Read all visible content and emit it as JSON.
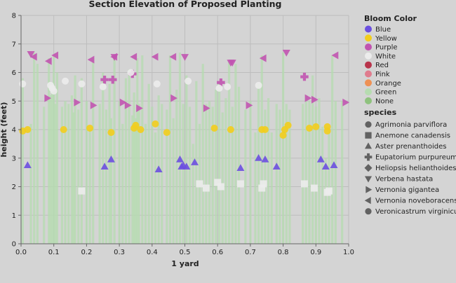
{
  "chart_data": {
    "type": "scatter",
    "title": "Section Elevation of Proposed Planting",
    "xlabel": "1 yard",
    "ylabel": "height (feet)",
    "xlim": [
      0,
      1
    ],
    "ylim": [
      0,
      8
    ],
    "x_ticks": [
      "0.0",
      "0.1",
      "0.2",
      "0.3",
      "0.4",
      "0.5",
      "0.6",
      "0.7",
      "0.8",
      "0.9",
      "1.0"
    ],
    "y_ticks": [
      "0",
      "1",
      "2",
      "3",
      "4",
      "5",
      "6",
      "7",
      "8"
    ],
    "grid": true,
    "legend_placement": "right",
    "color_legend": {
      "title": "Bloom Color",
      "entries": [
        {
          "label": "Blue",
          "color": "#6b4fe0"
        },
        {
          "label": "Yellow",
          "color": "#f2cd1d"
        },
        {
          "label": "Purple",
          "color": "#c154b0"
        },
        {
          "label": "White",
          "color": "#ececec"
        },
        {
          "label": "Red",
          "color": "#b8344b"
        },
        {
          "label": "Pink",
          "color": "#e07c8e"
        },
        {
          "label": "Orange",
          "color": "#ee9155"
        },
        {
          "label": "Green",
          "color": "#b6dcb0"
        },
        {
          "label": "None",
          "color": "#8fc27e"
        }
      ]
    },
    "shape_legend": {
      "title": "species",
      "entries": [
        {
          "label": "Agrimonia parviflora",
          "shape": "circle"
        },
        {
          "label": "Anemone canadensis",
          "shape": "square"
        },
        {
          "label": "Aster prenanthoides",
          "shape": "triangle-up"
        },
        {
          "label": "Eupatorium purpureum",
          "shape": "cross"
        },
        {
          "label": "Heliopsis helianthoides",
          "shape": "diamond"
        },
        {
          "label": "Verbena hastata",
          "shape": "triangle-down"
        },
        {
          "label": "Vernonia gigantea",
          "shape": "triangle-right"
        },
        {
          "label": "Vernonia noveboracensis",
          "shape": "triangle-left"
        },
        {
          "label": "Veronicastrum virginicum",
          "shape": "circle"
        }
      ]
    },
    "stems": {
      "color": "Green",
      "x": [
        0.005,
        0.03,
        0.04,
        0.05,
        0.07,
        0.085,
        0.09,
        0.095,
        0.1,
        0.105,
        0.11,
        0.125,
        0.135,
        0.145,
        0.155,
        0.16,
        0.165,
        0.175,
        0.185,
        0.2,
        0.21,
        0.22,
        0.24,
        0.25,
        0.26,
        0.27,
        0.275,
        0.285,
        0.3,
        0.31,
        0.32,
        0.33,
        0.34,
        0.345,
        0.35,
        0.355,
        0.36,
        0.37,
        0.38,
        0.39,
        0.4,
        0.41,
        0.42,
        0.43,
        0.445,
        0.455,
        0.465,
        0.475,
        0.485,
        0.495,
        0.505,
        0.515,
        0.525,
        0.535,
        0.545,
        0.555,
        0.565,
        0.575,
        0.585,
        0.595,
        0.605,
        0.615,
        0.625,
        0.635,
        0.645,
        0.655,
        0.665,
        0.685,
        0.7,
        0.715,
        0.725,
        0.735,
        0.745,
        0.755,
        0.765,
        0.78,
        0.79,
        0.8,
        0.81,
        0.82,
        0.86,
        0.87,
        0.88,
        0.89,
        0.9,
        0.91,
        0.92,
        0.93,
        0.94,
        0.95,
        0.96,
        0.98
      ],
      "top": [
        5.8,
        4.2,
        6.7,
        6.3,
        4.8,
        6.5,
        5.2,
        5.4,
        6.6,
        4.9,
        6.0,
        4.8,
        5.0,
        4.9,
        5.2,
        4.6,
        5.9,
        4.7,
        5.8,
        5.0,
        4.0,
        6.5,
        4.9,
        6.0,
        4.7,
        5.6,
        4.4,
        6.6,
        5.0,
        4.2,
        5.8,
        6.1,
        4.5,
        5.3,
        4.4,
        6.5,
        4.9,
        6.6,
        4.2,
        5.6,
        4.8,
        3.9,
        5.2,
        4.9,
        4.7,
        6.6,
        4.4,
        5.4,
        6.7,
        4.9,
        5.9,
        4.8,
        3.5,
        5.7,
        4.2,
        6.3,
        4.9,
        5.0,
        4.8,
        5.4,
        5.7,
        4.6,
        5.1,
        6.4,
        4.8,
        6.3,
        5.5,
        4.7,
        5.0,
        3.9,
        5.6,
        6.6,
        4.7,
        5.1,
        3.9,
        4.9,
        4.7,
        6.7,
        4.9,
        4.7,
        4.9,
        5.2,
        5.0,
        5.9,
        4.8,
        5.1,
        4.1,
        3.0,
        4.0,
        6.6,
        5.0,
        5.0
      ],
      "bottom": 0
    },
    "series": [
      {
        "name": "Agrimonia parviflora",
        "marker": "circle",
        "color": "Yellow",
        "x": [
          0.005,
          0.02,
          0.13,
          0.21,
          0.275,
          0.345,
          0.35,
          0.365,
          0.41,
          0.445,
          0.59,
          0.64,
          0.735,
          0.745,
          0.8,
          0.805,
          0.815,
          0.88,
          0.9,
          0.935,
          0.935
        ],
        "y": [
          3.95,
          4.0,
          4.0,
          4.05,
          3.9,
          4.05,
          4.15,
          4.0,
          4.2,
          3.9,
          4.05,
          4.0,
          4.0,
          4.0,
          3.8,
          4.0,
          4.15,
          4.05,
          4.1,
          4.1,
          3.95
        ]
      },
      {
        "name": "Anemone canadensis",
        "marker": "square",
        "color": "White",
        "x": [
          0.185,
          0.545,
          0.565,
          0.6,
          0.61,
          0.67,
          0.735,
          0.74,
          0.865,
          0.895,
          0.935,
          0.94
        ],
        "y": [
          1.85,
          2.1,
          1.95,
          2.15,
          2.0,
          2.1,
          1.95,
          2.1,
          2.1,
          1.95,
          1.8,
          1.85
        ]
      },
      {
        "name": "Aster prenanthoides",
        "marker": "triangle-up",
        "color": "Blue",
        "x": [
          0.02,
          0.255,
          0.275,
          0.42,
          0.485,
          0.49,
          0.495,
          0.505,
          0.53,
          0.67,
          0.725,
          0.745,
          0.78,
          0.915,
          0.93,
          0.955
        ],
        "y": [
          2.75,
          2.7,
          2.95,
          2.6,
          2.95,
          2.7,
          2.75,
          2.7,
          2.85,
          2.65,
          3.0,
          2.95,
          2.7,
          2.95,
          2.7,
          2.75
        ]
      },
      {
        "name": "Eupatorium purpureum",
        "marker": "cross",
        "color": "Purple",
        "x": [
          0.255,
          0.28,
          0.34,
          0.61,
          0.865
        ],
        "y": [
          5.75,
          5.75,
          5.95,
          5.65,
          5.85
        ]
      },
      {
        "name": "Heliopsis helianthoides",
        "marker": "diamond",
        "color": "Yellow",
        "x": [],
        "y": []
      },
      {
        "name": "Verbena hastata",
        "marker": "triangle-down",
        "color": "Purple",
        "x": [
          0.03,
          0.285,
          0.5,
          0.64,
          0.645,
          0.81
        ],
        "y": [
          6.65,
          6.55,
          6.55,
          6.35,
          6.35,
          6.7
        ]
      },
      {
        "name": "Vernonia gigantea",
        "marker": "triangle-right",
        "color": "Purple",
        "x": [
          0.08,
          0.17,
          0.22,
          0.31,
          0.325,
          0.36,
          0.465,
          0.565,
          0.695,
          0.875,
          0.895,
          0.99
        ],
        "y": [
          5.1,
          4.95,
          4.85,
          4.95,
          4.85,
          4.75,
          5.1,
          4.75,
          4.85,
          5.1,
          5.05,
          4.95
        ]
      },
      {
        "name": "Vernonia noveboracensis",
        "marker": "triangle-left",
        "color": "Purple",
        "x": [
          0.04,
          0.085,
          0.105,
          0.215,
          0.285,
          0.345,
          0.41,
          0.465,
          0.74,
          0.96
        ],
        "y": [
          6.55,
          6.4,
          6.6,
          6.45,
          6.55,
          6.55,
          6.55,
          6.55,
          6.5,
          6.6
        ]
      },
      {
        "name": "Veronicastrum virginicum",
        "marker": "circle",
        "color": "White",
        "x": [
          0.005,
          0.09,
          0.095,
          0.1,
          0.135,
          0.185,
          0.25,
          0.335,
          0.415,
          0.51,
          0.605,
          0.63,
          0.725
        ],
        "y": [
          5.6,
          5.55,
          5.45,
          5.35,
          5.7,
          5.6,
          5.5,
          6.0,
          5.6,
          5.7,
          5.45,
          5.5,
          5.55
        ]
      }
    ]
  }
}
